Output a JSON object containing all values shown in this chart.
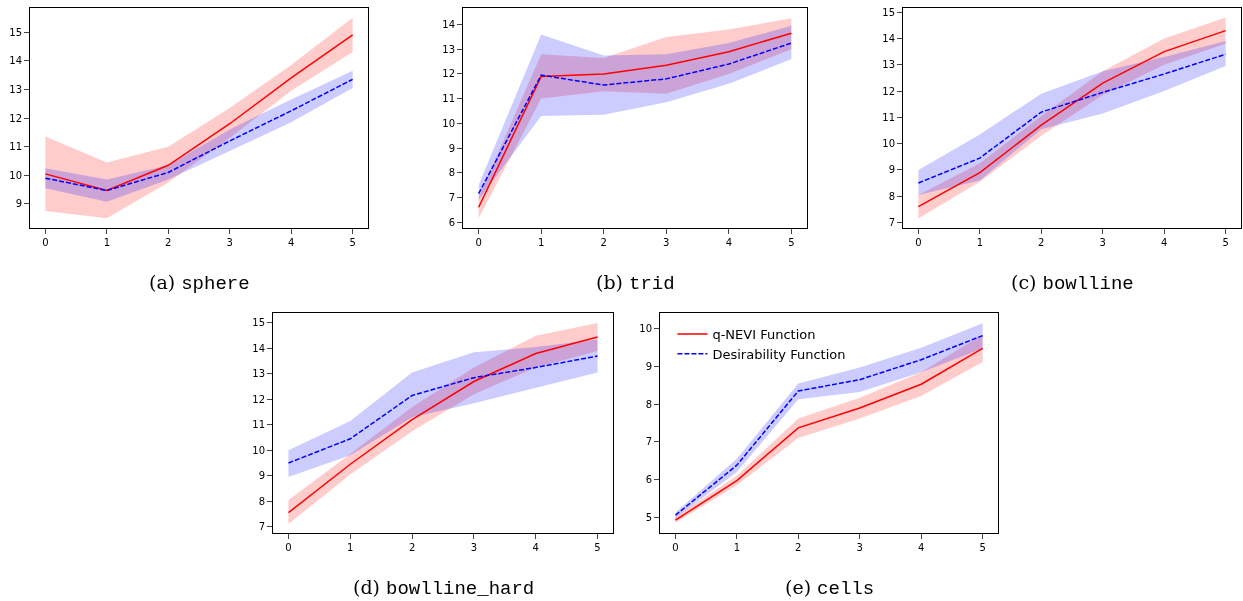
{
  "chart_data": [
    {
      "type": "line",
      "title": "(a) sphere",
      "x": [
        0,
        1,
        2,
        3,
        4,
        5
      ],
      "xlim": [
        -0.25,
        5.25
      ],
      "xticks": [
        0,
        1,
        2,
        3,
        4,
        5
      ],
      "ylim": [
        8.16,
        15.84
      ],
      "yticks": [
        9,
        10,
        11,
        12,
        13,
        14,
        15
      ],
      "series": [
        {
          "color": "#ff0000",
          "line_style": "solid",
          "values": [
            10.05,
            9.47,
            10.35,
            11.8,
            13.4,
            14.9
          ],
          "lower": [
            8.75,
            8.5,
            9.75,
            11.3,
            12.95,
            14.3
          ],
          "upper": [
            11.35,
            10.45,
            11.0,
            12.35,
            13.85,
            15.5
          ]
        },
        {
          "color": "#0000ff",
          "line_style": "dashed",
          "values": [
            9.9,
            9.47,
            10.1,
            11.2,
            12.25,
            13.35
          ],
          "lower": [
            9.55,
            9.08,
            9.85,
            10.85,
            11.85,
            13.05
          ],
          "upper": [
            10.25,
            9.85,
            10.35,
            11.6,
            12.65,
            13.65
          ]
        }
      ]
    },
    {
      "type": "line",
      "title": "(b) trid",
      "x": [
        0,
        1,
        2,
        3,
        4,
        5
      ],
      "xlim": [
        -0.25,
        5.25
      ],
      "xticks": [
        0,
        1,
        2,
        3,
        4,
        5
      ],
      "ylim": [
        5.76,
        14.67
      ],
      "yticks": [
        6,
        7,
        8,
        9,
        10,
        11,
        12,
        13,
        14
      ],
      "series": [
        {
          "color": "#ff0000",
          "line_style": "solid",
          "values": [
            6.6,
            11.9,
            12.0,
            12.35,
            12.9,
            13.65
          ],
          "lower": [
            6.15,
            11.0,
            11.3,
            11.2,
            12.0,
            13.0
          ],
          "upper": [
            7.0,
            12.8,
            12.65,
            13.5,
            13.8,
            14.25
          ]
        },
        {
          "color": "#0000ff",
          "line_style": "dashed",
          "values": [
            7.15,
            11.95,
            11.55,
            11.8,
            12.4,
            13.25
          ],
          "lower": [
            6.9,
            10.3,
            10.35,
            10.85,
            11.6,
            12.6
          ],
          "upper": [
            7.5,
            13.6,
            12.75,
            12.8,
            13.25,
            13.95
          ]
        }
      ]
    },
    {
      "type": "line",
      "title": "(c) bowlline",
      "x": [
        0,
        1,
        2,
        3,
        4,
        5
      ],
      "xlim": [
        -0.25,
        5.25
      ],
      "xticks": [
        0,
        1,
        2,
        3,
        4,
        5
      ],
      "ylim": [
        6.79,
        15.16
      ],
      "yticks": [
        7,
        8,
        9,
        10,
        11,
        12,
        13,
        14,
        15
      ],
      "series": [
        {
          "color": "#ff0000",
          "line_style": "solid",
          "values": [
            7.6,
            8.9,
            10.7,
            12.3,
            13.5,
            14.3
          ],
          "lower": [
            7.15,
            8.55,
            10.3,
            11.85,
            13.0,
            13.8
          ],
          "upper": [
            8.05,
            9.25,
            11.05,
            12.75,
            14.0,
            14.8
          ]
        },
        {
          "color": "#0000ff",
          "line_style": "dashed",
          "values": [
            8.5,
            9.45,
            11.2,
            11.95,
            12.65,
            13.4
          ],
          "lower": [
            8.05,
            8.6,
            10.55,
            11.15,
            12.0,
            12.95
          ],
          "upper": [
            9.0,
            10.35,
            11.9,
            12.75,
            13.3,
            13.9
          ]
        }
      ]
    },
    {
      "type": "line",
      "title": "(d) bowlline_hard",
      "x": [
        0,
        1,
        2,
        3,
        4,
        5
      ],
      "xlim": [
        -0.25,
        5.25
      ],
      "xticks": [
        0,
        1,
        2,
        3,
        4,
        5
      ],
      "ylim": [
        6.75,
        15.39
      ],
      "yticks": [
        7,
        8,
        9,
        10,
        11,
        12,
        13,
        14,
        15
      ],
      "series": [
        {
          "color": "#ff0000",
          "line_style": "solid",
          "values": [
            7.55,
            9.45,
            11.2,
            12.7,
            13.8,
            14.45
          ],
          "lower": [
            7.1,
            9.05,
            10.75,
            12.2,
            13.25,
            13.9
          ],
          "upper": [
            8.05,
            9.85,
            11.7,
            13.25,
            14.5,
            15.0
          ]
        },
        {
          "color": "#0000ff",
          "line_style": "dashed",
          "values": [
            9.5,
            10.45,
            12.15,
            12.85,
            13.25,
            13.7
          ],
          "lower": [
            8.95,
            9.8,
            11.3,
            11.85,
            12.45,
            13.05
          ],
          "upper": [
            10.0,
            11.15,
            13.05,
            13.85,
            14.05,
            14.35
          ]
        }
      ]
    },
    {
      "type": "line",
      "title": "(e) cells",
      "x": [
        0,
        1,
        2,
        3,
        4,
        5
      ],
      "xlim": [
        -0.25,
        5.25
      ],
      "xticks": [
        0,
        1,
        2,
        3,
        4,
        5
      ],
      "ylim": [
        4.58,
        10.42
      ],
      "yticks": [
        5,
        6,
        7,
        8,
        9,
        10
      ],
      "legend": "top left",
      "series": [
        {
          "name": "q-NEVI Function",
          "color": "#ff0000",
          "line_style": "solid",
          "values": [
            4.92,
            5.97,
            7.37,
            7.9,
            8.53,
            9.48
          ],
          "lower": [
            4.85,
            5.85,
            7.1,
            7.62,
            8.22,
            9.12
          ],
          "upper": [
            5.0,
            6.1,
            7.62,
            8.17,
            8.85,
            9.85
          ]
        },
        {
          "name": "Desirability Function",
          "color": "#0000ff",
          "line_style": "dashed",
          "values": [
            5.05,
            6.38,
            8.35,
            8.65,
            9.18,
            9.82
          ],
          "lower": [
            4.97,
            6.2,
            8.13,
            8.32,
            8.85,
            9.48
          ],
          "upper": [
            5.12,
            6.55,
            8.55,
            8.97,
            9.5,
            10.15
          ]
        }
      ]
    }
  ]
}
